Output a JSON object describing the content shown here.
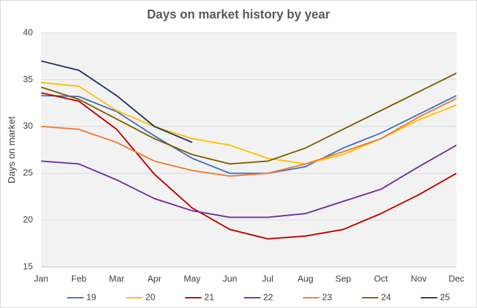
{
  "chart_data": {
    "type": "line",
    "title": "Days on market history by year",
    "y_label": "Days on market",
    "categories": [
      "Jan",
      "Feb",
      "Mar",
      "Apr",
      "May",
      "Jun",
      "Jul",
      "Aug",
      "Sep",
      "Oct",
      "Nov",
      "Dec"
    ],
    "series": [
      {
        "name": "19",
        "color": "#4472c4",
        "values": [
          33.3,
          33.2,
          31.6,
          29.0,
          26.6,
          25.0,
          25.0,
          25.7,
          27.7,
          29.3,
          31.3,
          33.3
        ]
      },
      {
        "name": "20",
        "color": "#ffc000",
        "values": [
          34.7,
          34.3,
          31.7,
          30.0,
          28.7,
          28.0,
          26.6,
          26.0,
          27.0,
          28.7,
          30.7,
          32.3
        ]
      },
      {
        "name": "21",
        "color": "#c00000",
        "values": [
          33.6,
          32.7,
          29.7,
          24.9,
          21.3,
          19.0,
          18.0,
          18.3,
          19.0,
          20.7,
          22.7,
          25.0
        ]
      },
      {
        "name": "22",
        "color": "#7030a0",
        "values": [
          26.3,
          26.0,
          24.3,
          22.3,
          21.0,
          20.3,
          20.3,
          20.7,
          22.0,
          23.3,
          25.7,
          28.0
        ]
      },
      {
        "name": "23",
        "color": "#ed7d31",
        "values": [
          30.0,
          29.7,
          28.3,
          26.3,
          25.3,
          24.7,
          25.0,
          26.0,
          27.3,
          28.7,
          31.0,
          33.0
        ]
      },
      {
        "name": "24",
        "color": "#806000",
        "values": [
          34.2,
          32.9,
          30.8,
          28.7,
          27.0,
          26.0,
          26.3,
          27.7,
          29.7,
          31.7,
          33.7,
          35.7
        ]
      },
      {
        "name": "25",
        "color": "#203864",
        "values": [
          37.0,
          36.0,
          33.3,
          30.0,
          28.3,
          null,
          null,
          null,
          null,
          null,
          null,
          null
        ]
      }
    ],
    "ylim": [
      15,
      40
    ],
    "yticks": [
      15,
      20,
      25,
      30,
      35,
      40
    ],
    "grid": true,
    "legend": "bottom"
  }
}
